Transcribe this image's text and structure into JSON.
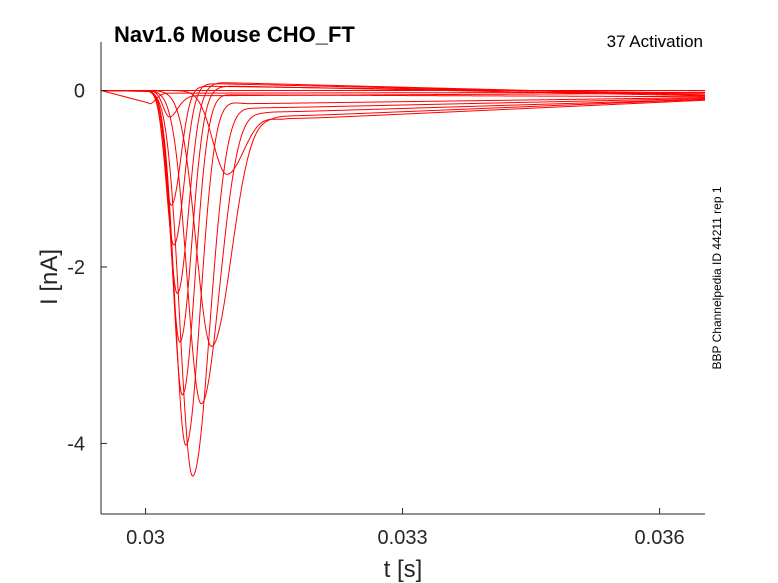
{
  "chart_data": {
    "type": "line",
    "title": "Nav1.6  Mouse  CHO_FT",
    "subtitle": "37  Activation",
    "side_label": "BBP Channelpedia ID 44211 rep 1",
    "xlabel": "t [s]",
    "ylabel": "I [nA]",
    "xlim": [
      0.02948,
      0.03653
    ],
    "ylim": [
      -4.8,
      0.55
    ],
    "xticks": [
      0.03,
      0.033,
      0.036
    ],
    "xtick_labels": [
      "0.03",
      "0.033",
      "0.036"
    ],
    "yticks": [
      0,
      -2,
      -4
    ],
    "ytick_labels": [
      "0",
      "-2",
      "-4"
    ],
    "grid": false,
    "legend": "none",
    "series_color": "#ff0000",
    "baseline": {
      "x": [
        0.02948,
        0.03653
      ],
      "y": [
        0.0,
        0.0
      ]
    },
    "onset": 0.03003,
    "tail_end": 0.03653,
    "series": [
      {
        "peak_t": 0.03005,
        "peak_i": -0.15,
        "width": 7e-05,
        "tail_t": 0.0302,
        "tail_i": -0.03,
        "end_i": -0.02
      },
      {
        "peak_t": 0.03028,
        "peak_i": -0.3,
        "width": 0.0001,
        "tail_t": 0.0305,
        "tail_i": -0.06,
        "end_i": -0.03
      },
      {
        "peak_t": 0.0303,
        "peak_i": -1.3,
        "width": 0.00011,
        "tail_t": 0.0306,
        "tail_i": 0.05,
        "end_i": -0.03
      },
      {
        "peak_t": 0.03033,
        "peak_i": -1.75,
        "width": 0.00012,
        "tail_t": 0.0307,
        "tail_i": 0.08,
        "end_i": -0.05
      },
      {
        "peak_t": 0.03037,
        "peak_i": -2.3,
        "width": 0.00013,
        "tail_t": 0.0309,
        "tail_i": 0.09,
        "end_i": -0.05
      },
      {
        "peak_t": 0.0304,
        "peak_i": -2.85,
        "width": 0.00014,
        "tail_t": 0.031,
        "tail_i": 0.05,
        "end_i": -0.06
      },
      {
        "peak_t": 0.03043,
        "peak_i": -3.45,
        "width": 0.00015,
        "tail_t": 0.0311,
        "tail_i": -0.05,
        "end_i": -0.07
      },
      {
        "peak_t": 0.03047,
        "peak_i": -4.02,
        "width": 0.00017,
        "tail_t": 0.0312,
        "tail_i": -0.15,
        "end_i": -0.08
      },
      {
        "peak_t": 0.03055,
        "peak_i": -4.37,
        "width": 0.0002,
        "tail_t": 0.0313,
        "tail_i": -0.2,
        "end_i": -0.09
      },
      {
        "peak_t": 0.03065,
        "peak_i": -3.55,
        "width": 0.00022,
        "tail_t": 0.0314,
        "tail_i": -0.25,
        "end_i": -0.1
      },
      {
        "peak_t": 0.03077,
        "peak_i": -2.9,
        "width": 0.00024,
        "tail_t": 0.0315,
        "tail_i": -0.3,
        "end_i": -0.1
      },
      {
        "peak_t": 0.03095,
        "peak_i": -0.95,
        "width": 0.00022,
        "tail_t": 0.0316,
        "tail_i": -0.33,
        "end_i": -0.11
      }
    ]
  }
}
